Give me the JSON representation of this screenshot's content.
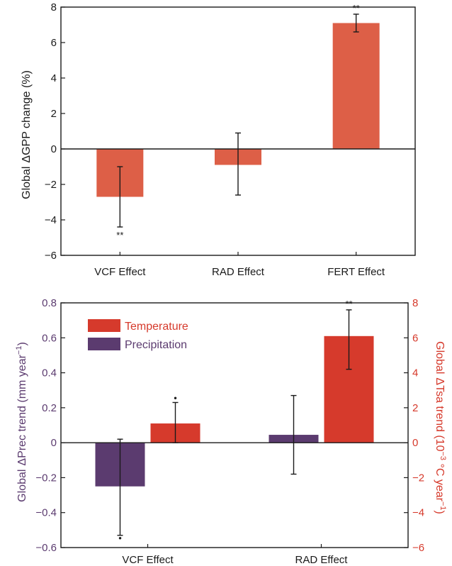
{
  "colors": {
    "top_bar": "#dd5f47",
    "temperature": "#d63a2c",
    "precipitation": "#5b3b6f",
    "left_axis_text": "#5b3b6f",
    "right_axis_text": "#d63a2c",
    "ink": "#1a1a1a"
  },
  "chart_data": [
    {
      "type": "bar",
      "categories": [
        "VCF Effect",
        "RAD Effect",
        "FERT Effect"
      ],
      "values": [
        -2.7,
        -0.9,
        7.1
      ],
      "error_low": [
        -4.4,
        -2.6,
        6.6
      ],
      "error_high": [
        -1.0,
        0.9,
        7.6
      ],
      "significance": [
        "**",
        "",
        "**"
      ],
      "significance_position": [
        "below",
        "",
        "above"
      ],
      "ylabel_prefix": "Global",
      "ylabel_symbol": "Δ",
      "ylabel_rest": "GPP change (%)",
      "ylim": [
        -6,
        8
      ],
      "yticks": [
        -6,
        -4,
        -2,
        0,
        2,
        4,
        6,
        8
      ],
      "ytick_labels": [
        "−6",
        "−4",
        "−2",
        "0",
        "2",
        "4",
        "6",
        "8"
      ],
      "grid": false
    },
    {
      "type": "bar",
      "categories": [
        "VCF Effect",
        "RAD Effect"
      ],
      "series": [
        {
          "name": "Precipitation",
          "axis": "left",
          "values": [
            -0.25,
            0.045
          ],
          "error_low": [
            -0.53,
            -0.18
          ],
          "error_high": [
            0.02,
            0.27
          ],
          "significance": [
            "•",
            ""
          ],
          "significance_position": [
            "below",
            ""
          ]
        },
        {
          "name": "Temperature",
          "axis": "right",
          "values": [
            1.1,
            6.1
          ],
          "error_low": [
            0.0,
            4.2
          ],
          "error_high": [
            2.3,
            7.6
          ],
          "significance": [
            "•",
            "**"
          ],
          "significance_position": [
            "above",
            "above"
          ]
        }
      ],
      "ylabel_left_prefix": "Global",
      "ylabel_left_symbol": "Δ",
      "ylabel_left_rest": "Prec trend (mm year",
      "ylabel_left_sup": "−1",
      "ylabel_left_close": ")",
      "ylabel_right_prefix": "Global",
      "ylabel_right_symbol": "Δ",
      "ylabel_right_rest": "Tsa trend (10",
      "ylabel_right_sup": "−3",
      "ylabel_right_mid": " °C year",
      "ylabel_right_sup2": "−1",
      "ylabel_right_close": ")",
      "ylim_left": [
        -0.6,
        0.8
      ],
      "yticks_left": [
        -0.6,
        -0.4,
        -0.2,
        0,
        0.2,
        0.4,
        0.6,
        0.8
      ],
      "ytick_labels_left": [
        "−0.6",
        "−0.4",
        "−0.2",
        "0",
        "0.2",
        "0.4",
        "0.6",
        "0.8"
      ],
      "ylim_right": [
        -6,
        8
      ],
      "yticks_right": [
        -6,
        -4,
        -2,
        0,
        2,
        4,
        6,
        8
      ],
      "ytick_labels_right": [
        "−6",
        "−4",
        "−2",
        "0",
        "2",
        "4",
        "6",
        "8"
      ],
      "legend_position": "top-left",
      "grid": false
    }
  ]
}
